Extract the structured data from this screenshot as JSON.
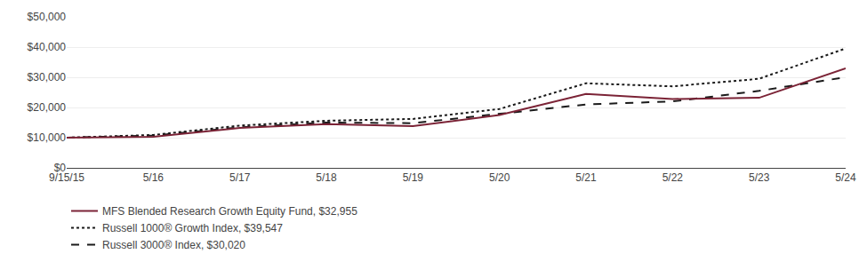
{
  "chart_data": {
    "type": "line",
    "categories": [
      "9/15/15",
      "5/16",
      "5/17",
      "5/18",
      "5/19",
      "5/20",
      "5/21",
      "5/22",
      "5/23",
      "5/24"
    ],
    "series": [
      {
        "name": "MFS Blended Research Growth Equity Fund, $32,955",
        "color": "#7B2336",
        "line_style": "solid",
        "values": [
          10000,
          10300,
          13200,
          14500,
          13800,
          17500,
          24500,
          22800,
          23200,
          32955
        ]
      },
      {
        "name": "Russell 1000® Growth Index, $39,547",
        "color": "#1a1a1a",
        "line_style": "dotted",
        "values": [
          10000,
          10900,
          14000,
          15600,
          16200,
          19500,
          28000,
          27000,
          29500,
          39547
        ]
      },
      {
        "name": "Russell 3000® Index, $30,020",
        "color": "#1a1a1a",
        "line_style": "dashed",
        "values": [
          10000,
          10700,
          13400,
          15000,
          14800,
          17800,
          21000,
          22000,
          25500,
          30020
        ]
      }
    ],
    "ylim": [
      0,
      50000
    ],
    "yticks": [
      {
        "value": 0,
        "label": "$0"
      },
      {
        "value": 10000,
        "label": "$10,000"
      },
      {
        "value": 20000,
        "label": "$20,000"
      },
      {
        "value": 30000,
        "label": "$30,000"
      },
      {
        "value": 40000,
        "label": "$40,000"
      },
      {
        "value": 50000,
        "label": "$50,000"
      }
    ],
    "grid": true,
    "legend": "bottom"
  }
}
